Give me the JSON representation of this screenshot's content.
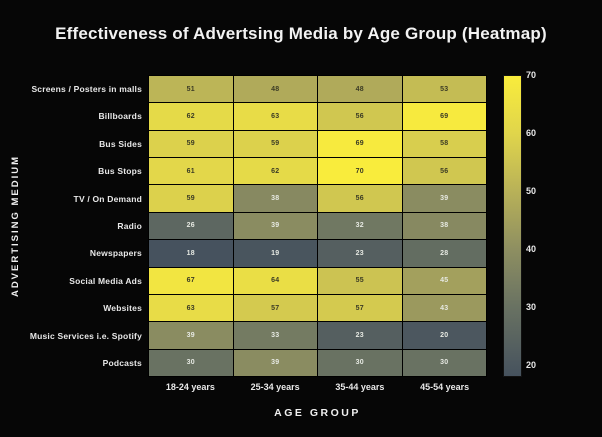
{
  "title": "Effectiveness of Advertsing Media by Age Group (Heatmap)",
  "x_axis_title": "AGE GROUP",
  "y_axis_title": "ADVERTISING MEDIUM",
  "chart_data": {
    "type": "heatmap",
    "title": "Effectiveness of Advertsing Media by Age Group (Heatmap)",
    "xlabel": "AGE GROUP",
    "ylabel": "ADVERTISING MEDIUM",
    "columns": [
      "18-24 years",
      "25-34 years",
      "35-44 years",
      "45-54 years"
    ],
    "rows": [
      "Screens / Posters in malls",
      "Billboards",
      "Bus Sides",
      "Bus Stops",
      "TV / On Demand",
      "Radio",
      "Newspapers",
      "Social Media Ads",
      "Websites",
      "Music Services i.e. Spotify",
      "Podcasts"
    ],
    "values": [
      [
        51,
        48,
        48,
        53
      ],
      [
        62,
        63,
        56,
        69
      ],
      [
        59,
        59,
        69,
        58
      ],
      [
        61,
        62,
        70,
        56
      ],
      [
        59,
        38,
        56,
        39
      ],
      [
        26,
        39,
        32,
        38
      ],
      [
        18,
        19,
        23,
        28
      ],
      [
        67,
        64,
        55,
        45
      ],
      [
        63,
        57,
        57,
        43
      ],
      [
        39,
        33,
        23,
        20
      ],
      [
        30,
        39,
        30,
        30
      ]
    ],
    "value_range": [
      18,
      70
    ],
    "colorbar_ticks": [
      70,
      60,
      50,
      40,
      30,
      20
    ],
    "colormap": [
      {
        "v": 18,
        "color": "#46525e"
      },
      {
        "v": 30,
        "color": "#697262"
      },
      {
        "v": 40,
        "color": "#8e8f61"
      },
      {
        "v": 50,
        "color": "#b8b158"
      },
      {
        "v": 60,
        "color": "#e0d54b"
      },
      {
        "v": 70,
        "color": "#f9ec3c"
      }
    ],
    "cell_text_dark": "#3b3b25",
    "cell_text_light": "#e6e9e2",
    "dark_text_threshold": 47,
    "legend_position": "right",
    "grid": true,
    "background": "#060606"
  }
}
